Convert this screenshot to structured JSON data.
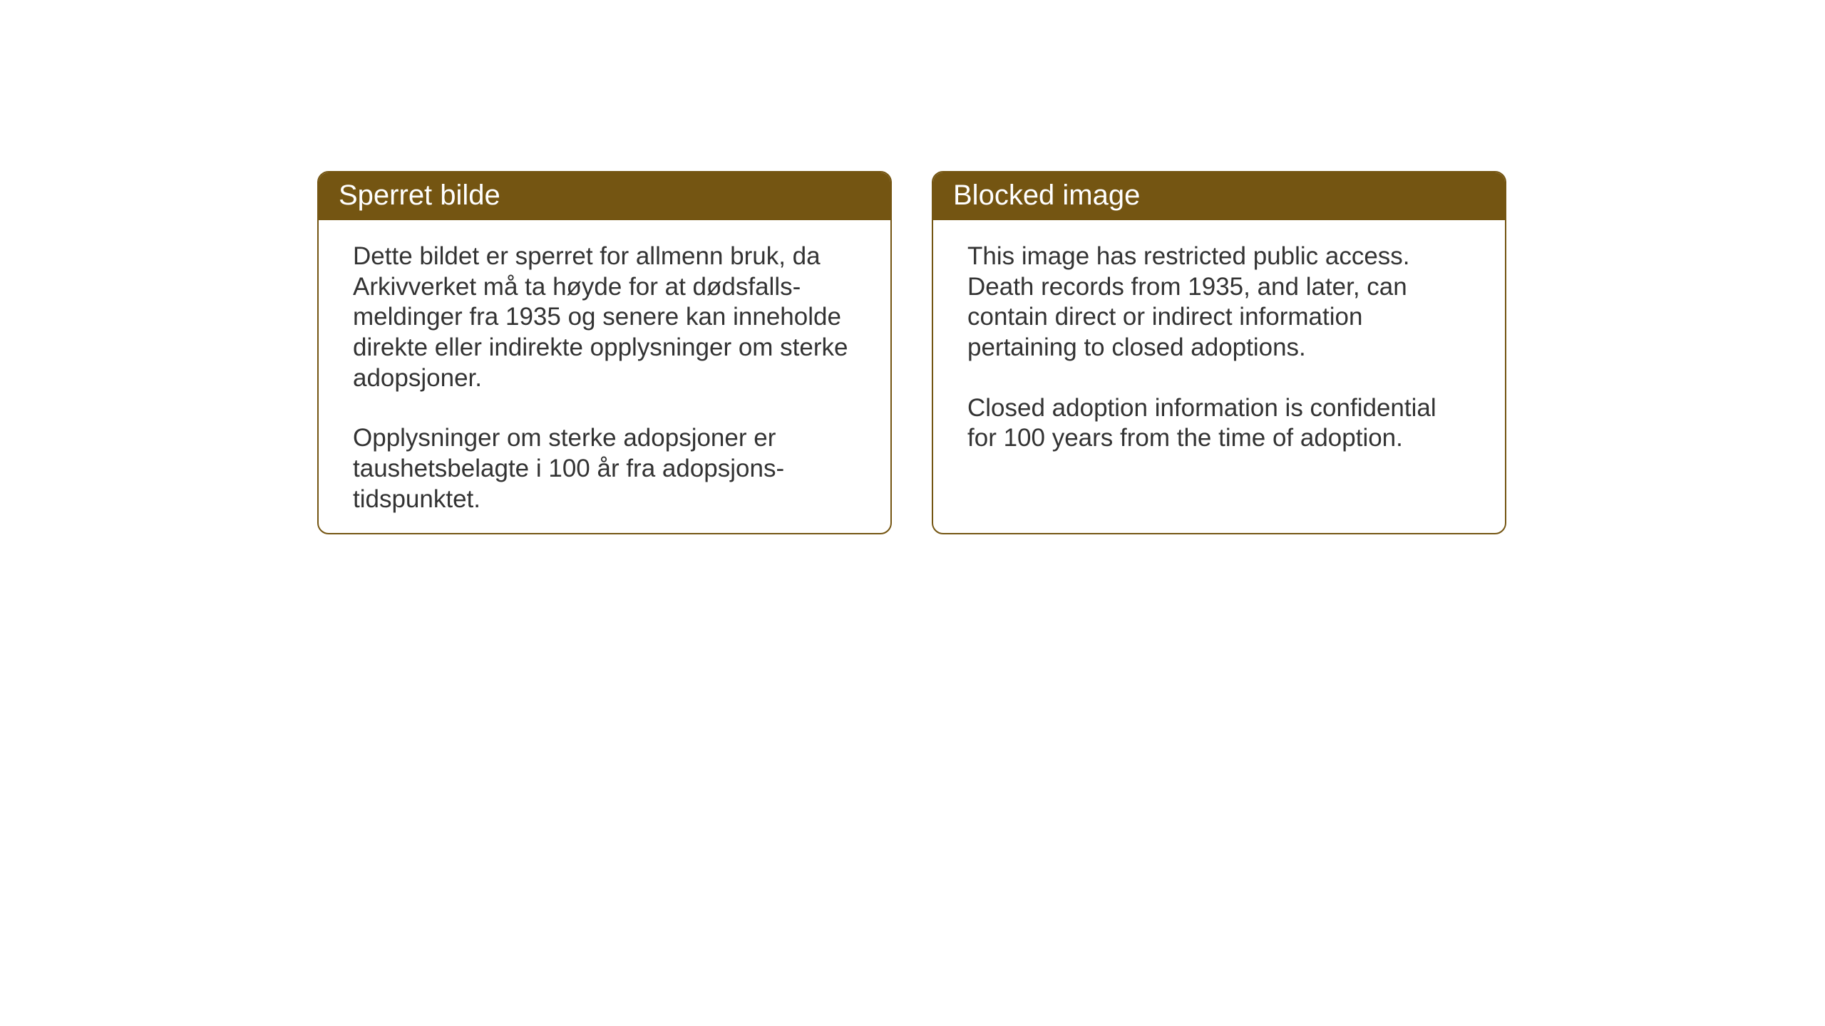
{
  "cards": {
    "left": {
      "title": "Sperret bilde",
      "paragraph1": "Dette bildet er sperret for allmenn bruk, da Arkivverket må ta høyde for at dødsfalls-meldinger fra 1935 og senere kan inneholde direkte eller indirekte opplysninger om sterke adopsjoner.",
      "paragraph2": "Opplysninger om sterke adopsjoner er taushetsbelagte i 100 år fra adopsjons-tidspunktet."
    },
    "right": {
      "title": "Blocked image",
      "paragraph1": "This image has restricted public access. Death records from 1935, and later, can contain direct or indirect information pertaining to closed adoptions.",
      "paragraph2": "Closed adoption information is confidential for 100 years from the time of adoption."
    }
  },
  "styling": {
    "header_bg_color": "#745512",
    "header_text_color": "#ffffff",
    "border_color": "#745512",
    "body_text_color": "#333333",
    "background_color": "#ffffff",
    "border_radius": 16,
    "title_fontsize": 40,
    "body_fontsize": 35
  }
}
